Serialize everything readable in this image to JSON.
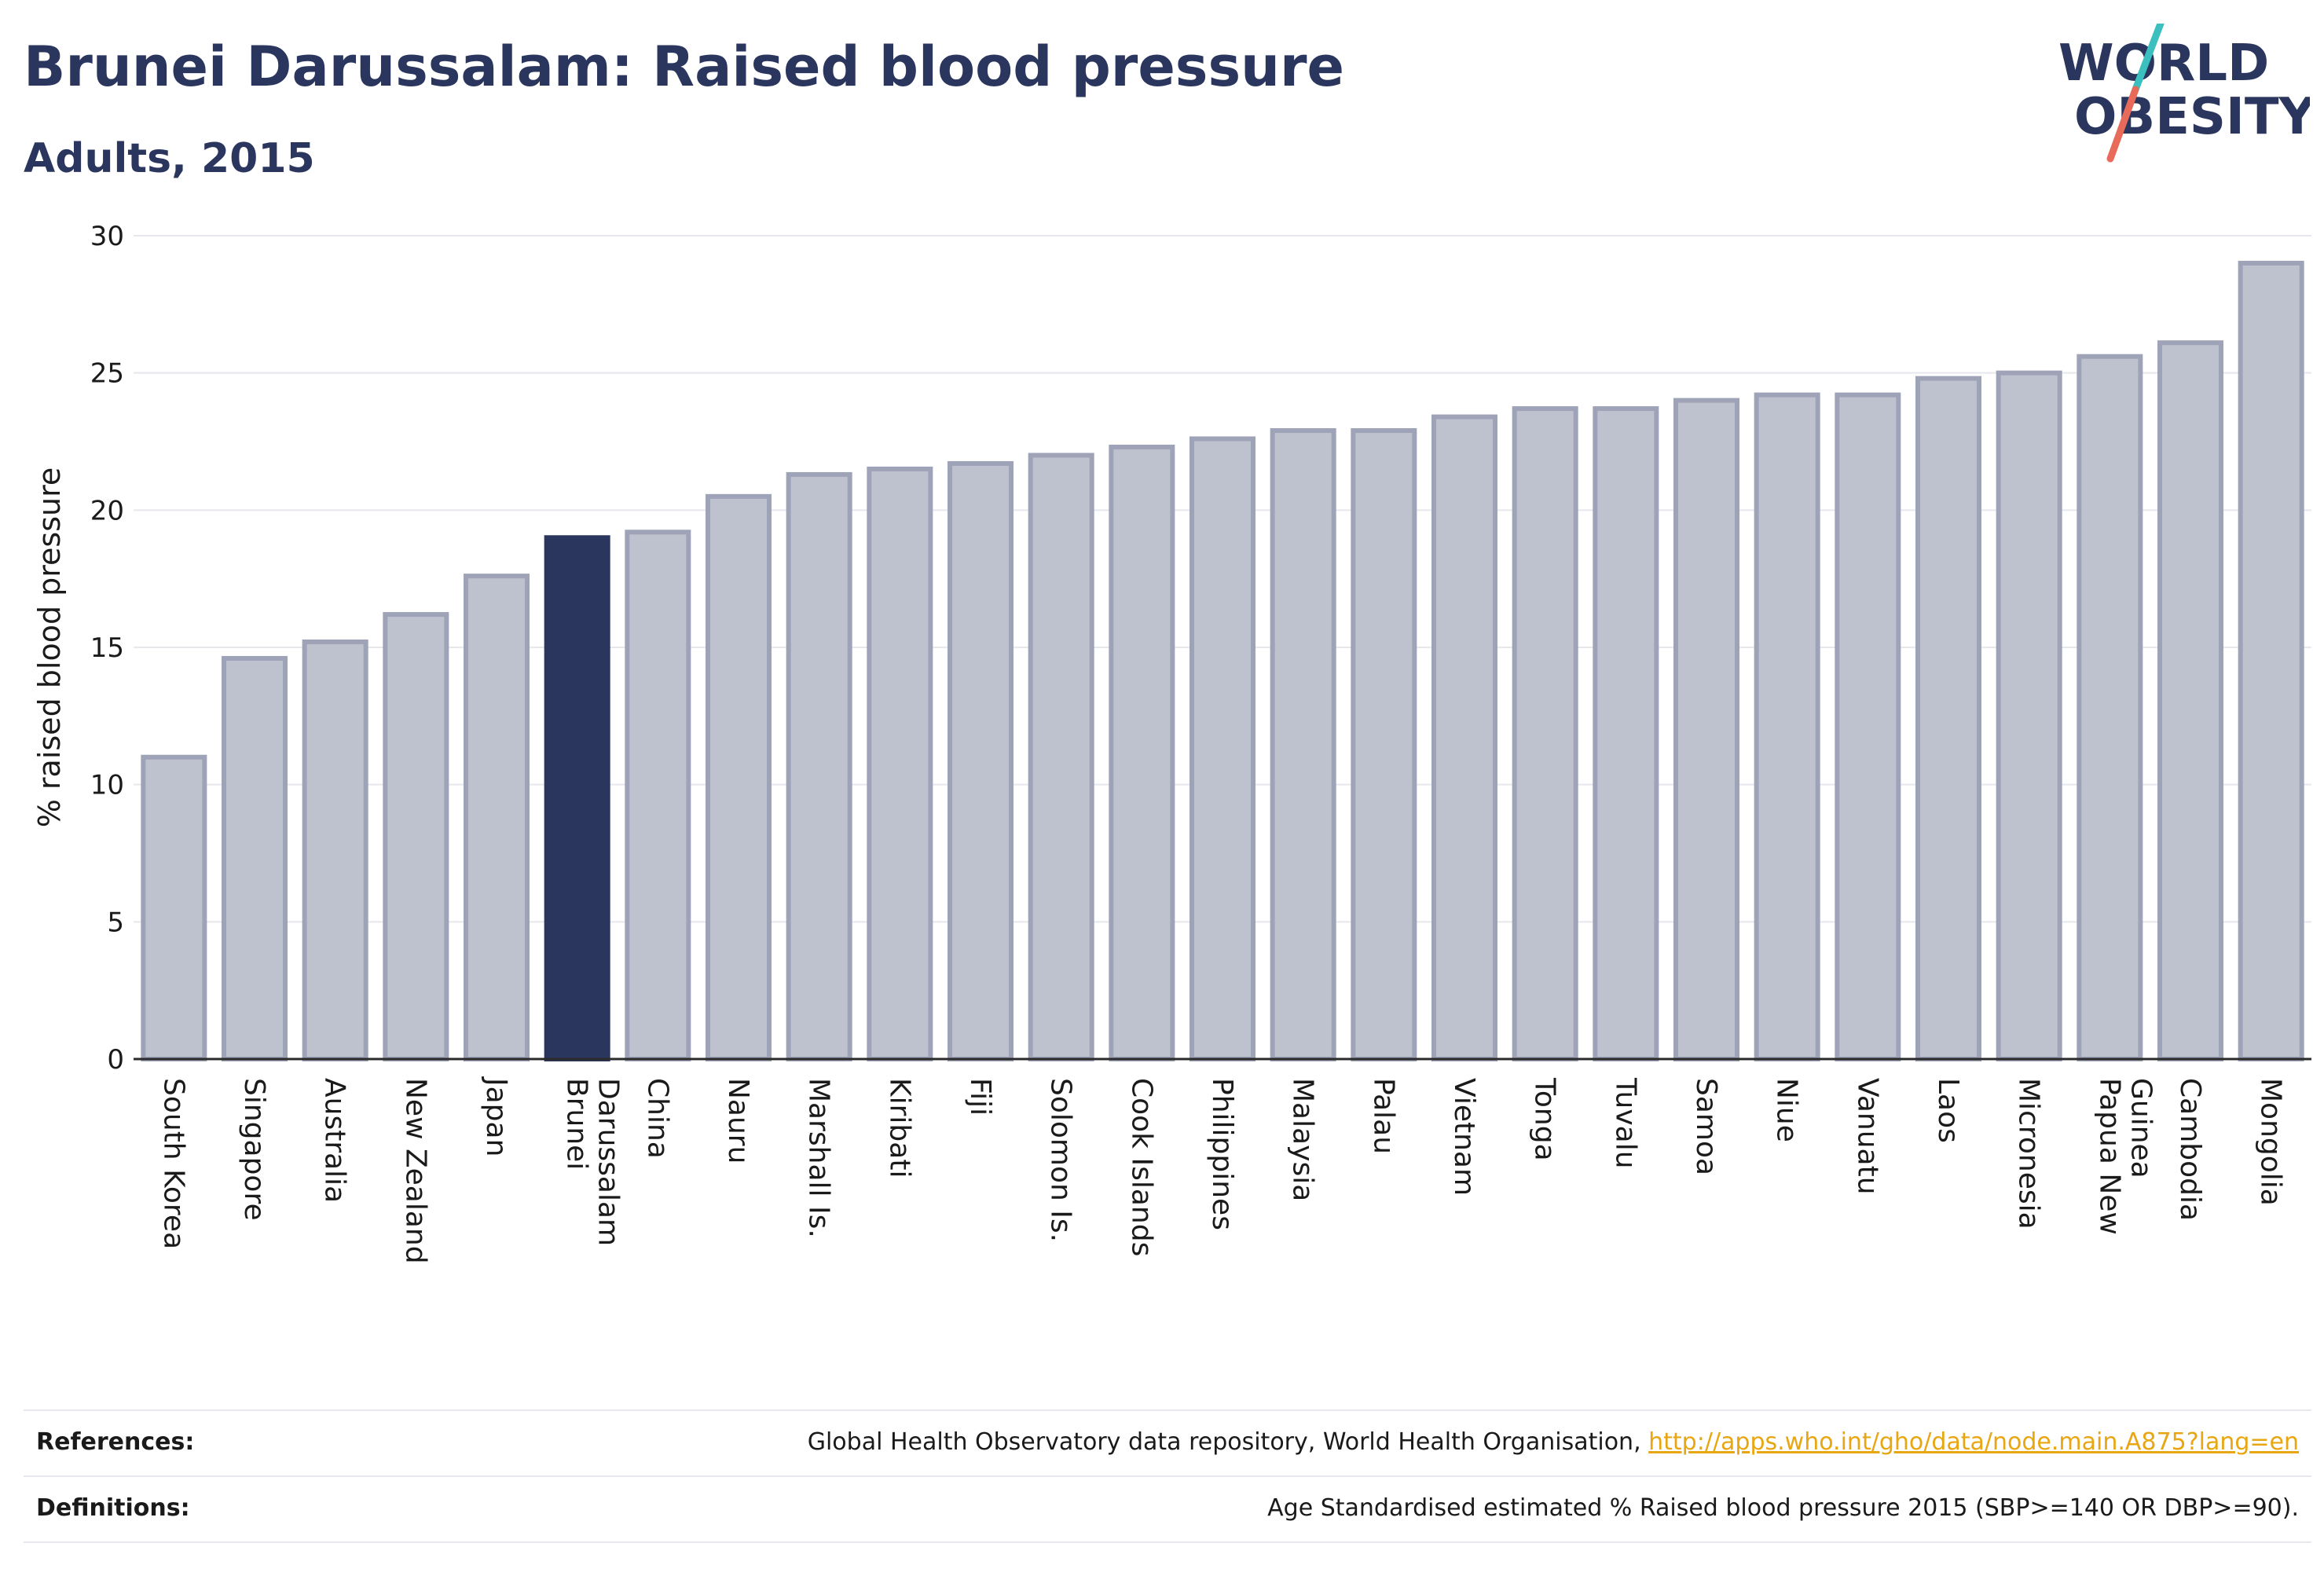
{
  "header": {
    "title": "Brunei Darussalam: Raised blood pressure",
    "subtitle": "Adults, 2015"
  },
  "logo": {
    "line1": "WORLD",
    "line2": "OBESITY",
    "colors": {
      "text": "#2b365e",
      "slash_top": "#3bbfbf",
      "slash_bottom": "#e86a5a"
    }
  },
  "chart_data": {
    "type": "bar",
    "ylabel": "% raised blood pressure",
    "ylim": [
      0,
      30
    ],
    "yticks": [
      0,
      5,
      10,
      15,
      20,
      25,
      30
    ],
    "grid": true,
    "highlight": "Brunei Darussalam",
    "colors": {
      "bar": "#bec1ce",
      "bar_edge": "#9ea3b8",
      "highlight": "#2b365e",
      "grid": "#e6e8ee",
      "axis": "#2b2b2b"
    },
    "categories": [
      "South Korea",
      "Singapore",
      "Australia",
      "New Zealand",
      "Japan",
      "Brunei Darussalam",
      "China",
      "Nauru",
      "Marshall Is.",
      "Kiribati",
      "Fiji",
      "Solomon Is.",
      "Cook Islands",
      "Philippines",
      "Malaysia",
      "Palau",
      "Vietnam",
      "Tonga",
      "Tuvalu",
      "Samoa",
      "Niue",
      "Vanuatu",
      "Laos",
      "Micronesia",
      "Papua New Guinea",
      "Cambodia",
      "Mongolia"
    ],
    "values": [
      11.0,
      14.6,
      15.2,
      16.2,
      17.6,
      19.0,
      19.2,
      20.5,
      21.3,
      21.5,
      21.7,
      22.0,
      22.3,
      22.6,
      22.9,
      22.9,
      23.4,
      23.7,
      23.7,
      24.0,
      24.2,
      24.2,
      24.8,
      25.0,
      25.6,
      26.1,
      29.0
    ]
  },
  "footer": {
    "references_label": "References:",
    "references_text": "Global Health Observatory data repository, World Health Organisation, ",
    "references_link": "http://apps.who.int/gho/data/node.main.A875?lang=en",
    "definitions_label": "Definitions:",
    "definitions_text": "Age Standardised estimated % Raised blood pressure 2015 (SBP>=140 OR DBP>=90)."
  }
}
